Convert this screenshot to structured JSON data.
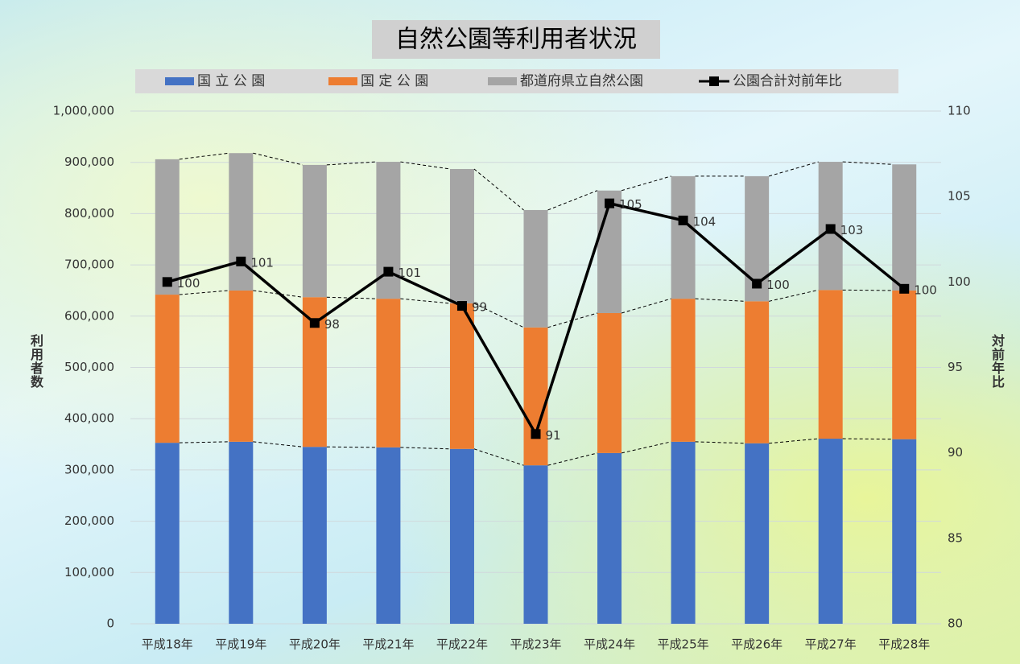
{
  "chart_data": {
    "type": "stacked_bar_line",
    "title": "自然公園等利用者状況",
    "y_axis_label": "利用者数",
    "y2_axis_label": "対前年比",
    "categories": [
      "平成18年",
      "平成19年",
      "平成20年",
      "平成21年",
      "平成22年",
      "平成23年",
      "平成24年",
      "平成25年",
      "平成26年",
      "平成27年",
      "平成28年"
    ],
    "series": [
      {
        "name": "国 立 公 園",
        "color": "#4472c4",
        "kind": "bar",
        "values": [
          353000,
          355000,
          345000,
          344000,
          341000,
          309000,
          333000,
          355000,
          352000,
          361000,
          360000
        ]
      },
      {
        "name": "国 定 公 園",
        "color": "#ed7d31",
        "kind": "bar",
        "values": [
          289000,
          295000,
          292000,
          290000,
          284000,
          269000,
          273000,
          279000,
          277000,
          290000,
          290000
        ]
      },
      {
        "name": "都道府県立自然公園",
        "color": "#a5a5a5",
        "kind": "bar",
        "values": [
          264000,
          268000,
          258000,
          267000,
          262000,
          229000,
          239000,
          239000,
          244000,
          250000,
          246000
        ]
      },
      {
        "name": "公園合計対前年比",
        "color": "#000000",
        "kind": "line",
        "axis": "y2",
        "values": [
          100.0,
          101.2,
          97.6,
          100.6,
          98.6,
          91.1,
          104.6,
          103.6,
          99.9,
          103.1,
          99.6
        ],
        "value_labels": [
          "100",
          "101",
          "98",
          "101",
          "99",
          "91",
          "105",
          "104",
          "100",
          "103",
          "100"
        ]
      }
    ],
    "ylim": [
      0,
      1000000
    ],
    "yticks": [
      0,
      {
        "value": 100000,
        "label": "100,000"
      },
      {
        "value": 200000,
        "label": "200,000"
      },
      {
        "value": 300000,
        "label": "300,000"
      },
      {
        "value": 400000,
        "label": "400,000"
      },
      {
        "value": 500000,
        "label": "500,000"
      },
      {
        "value": 600000,
        "label": "600,000"
      },
      {
        "value": 700000,
        "label": "700,000"
      },
      {
        "value": 800000,
        "label": "800,000"
      },
      {
        "value": 900000,
        "label": "900,000"
      },
      {
        "value": 1000000,
        "label": "1,000,000"
      }
    ],
    "y2lim": [
      80,
      110
    ],
    "y2ticks": [
      80,
      85,
      90,
      95,
      100,
      105,
      110
    ],
    "grid": true
  }
}
